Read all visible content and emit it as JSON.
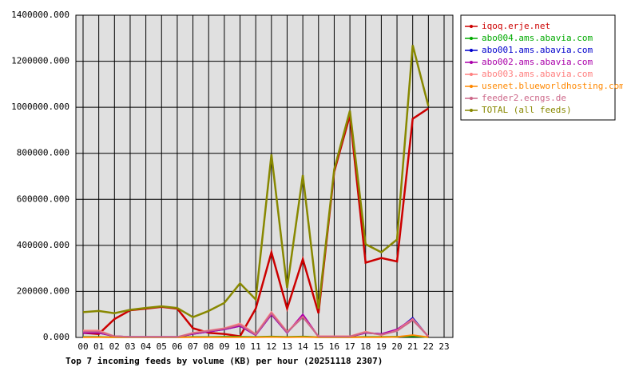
{
  "chart_data": {
    "type": "line",
    "title": "Top 7 incoming feeds by volume (KB) per hour (20251118 2307)",
    "categories": [
      "00",
      "01",
      "02",
      "03",
      "04",
      "05",
      "06",
      "07",
      "08",
      "09",
      "10",
      "11",
      "12",
      "13",
      "14",
      "15",
      "16",
      "17",
      "18",
      "19",
      "20",
      "21",
      "22",
      "23"
    ],
    "ylim": [
      0,
      1400000
    ],
    "yticks": [
      {
        "value": 0,
        "label": "0.000"
      },
      {
        "value": 200000,
        "label": "200000.000"
      },
      {
        "value": 400000,
        "label": "400000.000"
      },
      {
        "value": 600000,
        "label": "600000.000"
      },
      {
        "value": 800000,
        "label": "800000.000"
      },
      {
        "value": 1000000,
        "label": "1000000.000"
      },
      {
        "value": 1200000,
        "label": "1200000.000"
      },
      {
        "value": 1400000,
        "label": "1400000.000"
      }
    ],
    "grid": true,
    "series": [
      {
        "name": "iqoq.erje.net",
        "color": "#cc0000",
        "values": [
          20000,
          15000,
          80000,
          118000,
          125000,
          133000,
          125000,
          40000,
          20000,
          15000,
          5000,
          125000,
          370000,
          125000,
          340000,
          105000,
          720000,
          965000,
          325000,
          345000,
          330000,
          950000,
          995000,
          null
        ]
      },
      {
        "name": "abo004.ams.abavia.com",
        "color": "#00aa00",
        "values": [
          2000,
          2000,
          1000,
          1000,
          1000,
          1000,
          1000,
          2000,
          2000,
          3000,
          3000,
          2000,
          4000,
          2000,
          4000,
          1000,
          1000,
          1000,
          2000,
          2000,
          3000,
          5000,
          1000,
          null
        ]
      },
      {
        "name": "abo001.ams.abavia.com",
        "color": "#0000cc",
        "values": [
          20000,
          20000,
          5000,
          2000,
          2000,
          2000,
          2000,
          15000,
          25000,
          35000,
          50000,
          10000,
          100000,
          20000,
          95000,
          3000,
          3000,
          3000,
          20000,
          15000,
          30000,
          85000,
          3000,
          null
        ]
      },
      {
        "name": "abo002.ams.abavia.com",
        "color": "#aa00aa",
        "values": [
          20000,
          20000,
          5000,
          2000,
          2000,
          2000,
          2000,
          15000,
          25000,
          35000,
          50000,
          10000,
          100000,
          20000,
          100000,
          3000,
          3000,
          3000,
          20000,
          15000,
          35000,
          80000,
          3000,
          null
        ]
      },
      {
        "name": "abo003.ams.abavia.com",
        "color": "#ff8080",
        "values": [
          30000,
          30000,
          5000,
          2000,
          2000,
          2000,
          2000,
          20000,
          30000,
          40000,
          60000,
          15000,
          110000,
          25000,
          90000,
          5000,
          5000,
          5000,
          25000,
          10000,
          30000,
          80000,
          5000,
          null
        ]
      },
      {
        "name": "usenet.blueworldhosting.com",
        "color": "#ff8800",
        "values": [
          1000,
          1000,
          1000,
          1000,
          1000,
          1000,
          1000,
          1000,
          1000,
          1000,
          1000,
          1000,
          2000,
          1000,
          2000,
          1000,
          1000,
          1000,
          1000,
          1000,
          2000,
          10000,
          1000,
          null
        ]
      },
      {
        "name": "feeder2.ecngs.de",
        "color": "#cc6688",
        "values": [
          25000,
          25000,
          5000,
          2000,
          2000,
          2000,
          2000,
          18000,
          28000,
          38000,
          55000,
          12000,
          105000,
          22000,
          88000,
          4000,
          4000,
          4000,
          22000,
          12000,
          28000,
          75000,
          4000,
          null
        ]
      },
      {
        "name": "TOTAL (all feeds)",
        "color": "#888800",
        "values": [
          110000,
          115000,
          105000,
          120000,
          128000,
          135000,
          128000,
          88000,
          115000,
          150000,
          235000,
          165000,
          795000,
          215000,
          705000,
          125000,
          730000,
          985000,
          405000,
          370000,
          425000,
          1270000,
          1005000,
          null
        ]
      }
    ]
  }
}
